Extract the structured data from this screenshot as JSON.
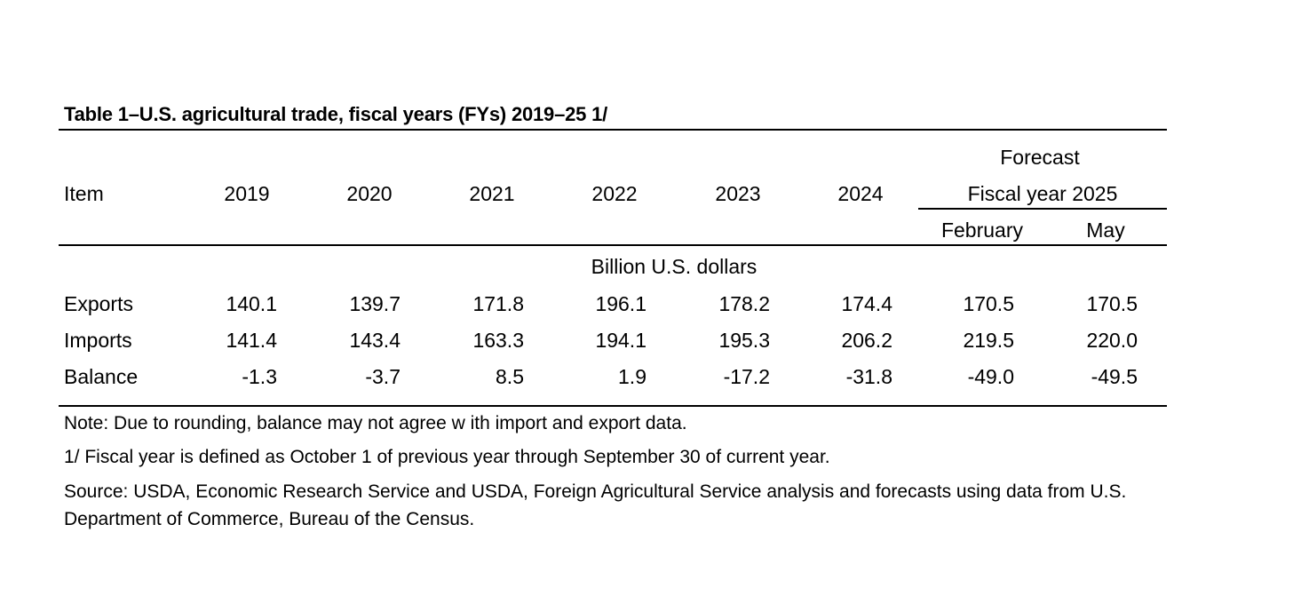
{
  "table": {
    "title": "Table 1–U.S. agricultural trade, fiscal years (FYs) 2019–25 1/",
    "headers": {
      "item": "Item",
      "years": [
        "2019",
        "2020",
        "2021",
        "2022",
        "2023",
        "2024"
      ],
      "forecast": "Forecast",
      "fiscal_year": "Fiscal year 2025",
      "february": "February",
      "may": "May"
    },
    "unit": "Billion U.S. dollars",
    "rows": [
      {
        "label": "Exports",
        "values": [
          "140.1",
          "139.7",
          "171.8",
          "196.1",
          "178.2",
          "174.4",
          "170.5",
          "170.5"
        ]
      },
      {
        "label": "Imports",
        "values": [
          "141.4",
          "143.4",
          "163.3",
          "194.1",
          "195.3",
          "206.2",
          "219.5",
          "220.0"
        ]
      },
      {
        "label": "Balance",
        "values": [
          "-1.3",
          "-3.7",
          "8.5",
          "1.9",
          "-17.2",
          "-31.8",
          "-49.0",
          "-49.5"
        ]
      }
    ],
    "notes": [
      "Note: Due to rounding, balance may not agree w ith import and export data.",
      "1/ Fiscal year is defined as October 1 of previous year through September 30 of current year.",
      "Source: USDA, Economic Research Service and USDA, Foreign Agricultural Service analysis and forecasts using data from U.S. Department of Commerce, Bureau of the Census."
    ]
  }
}
